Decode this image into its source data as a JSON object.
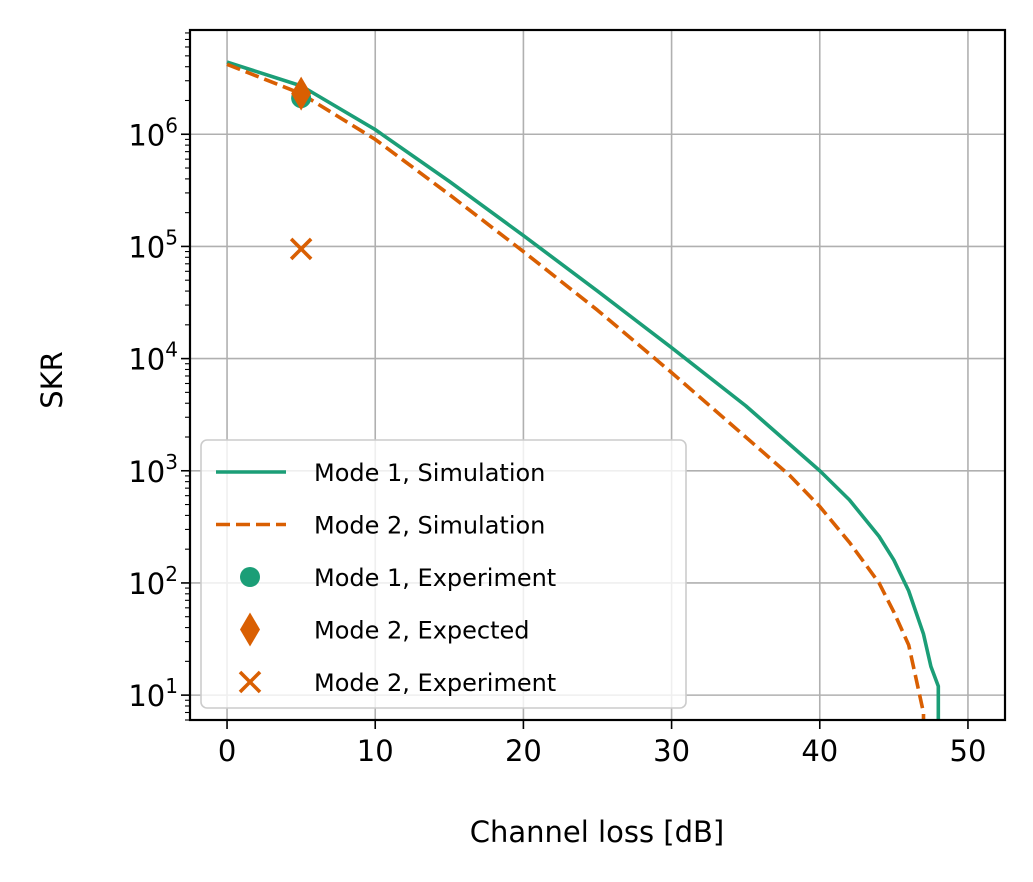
{
  "chart_data": {
    "type": "line",
    "title": "",
    "xlabel": "Channel loss [dB]",
    "ylabel": "SKR",
    "xlim": [
      -2.5,
      52.5
    ],
    "ylim": [
      6,
      8500000
    ],
    "yscale": "log",
    "grid": true,
    "legend_position": "lower-left",
    "x_ticks": [
      0,
      10,
      20,
      30,
      40,
      50
    ],
    "x_tick_labels": [
      "0",
      "10",
      "20",
      "30",
      "40",
      "50"
    ],
    "y_ticks": [
      10,
      100,
      1000,
      10000,
      100000,
      1000000
    ],
    "y_tick_labels": [
      {
        "base": "10",
        "exp": "1"
      },
      {
        "base": "10",
        "exp": "2"
      },
      {
        "base": "10",
        "exp": "3"
      },
      {
        "base": "10",
        "exp": "4"
      },
      {
        "base": "10",
        "exp": "5"
      },
      {
        "base": "10",
        "exp": "6"
      }
    ],
    "series": [
      {
        "name": "Mode 1, Simulation",
        "kind": "line",
        "style": "solid",
        "color": "#1b9e77",
        "x": [
          0,
          5,
          10,
          15,
          20,
          25,
          30,
          35,
          40,
          42,
          44,
          45,
          46,
          47,
          47.5,
          48,
          48
        ],
        "y": [
          4400000,
          2700000,
          1100000,
          380000,
          125000,
          40000,
          12500,
          3800,
          1000,
          550,
          260,
          160,
          85,
          35,
          18,
          12,
          5
        ]
      },
      {
        "name": "Mode 2, Simulation",
        "kind": "line",
        "style": "dashed",
        "color": "#d95f02",
        "x": [
          0,
          5,
          10,
          15,
          20,
          25,
          30,
          35,
          38,
          40,
          42,
          44,
          45,
          46,
          46.5,
          46.9,
          47,
          47
        ],
        "y": [
          4200000,
          2300000,
          900000,
          290000,
          90000,
          27000,
          7500,
          2000,
          900,
          480,
          230,
          100,
          55,
          28,
          14,
          8,
          7,
          5
        ]
      },
      {
        "name": "Mode 1, Experiment",
        "kind": "marker",
        "marker": "circle",
        "color": "#1b9e77",
        "x": [
          5
        ],
        "y": [
          2100000
        ]
      },
      {
        "name": "Mode 2, Expected",
        "kind": "marker",
        "marker": "thin_diamond",
        "color": "#d95f02",
        "x": [
          5
        ],
        "y": [
          2300000
        ]
      },
      {
        "name": "Mode 2, Experiment",
        "kind": "marker",
        "marker": "x",
        "color": "#d95f02",
        "x": [
          5
        ],
        "y": [
          95000
        ]
      }
    ]
  }
}
